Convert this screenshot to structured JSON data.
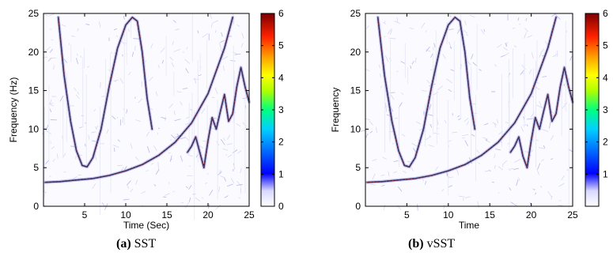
{
  "chart_data": [
    {
      "type": "heatmap",
      "panel_label": "(a)",
      "caption": "SST",
      "xlabel": "Time (Sec)",
      "ylabel": "Frequency (Hz)",
      "xlim": [
        0,
        25
      ],
      "ylim": [
        0,
        25
      ],
      "xticks": [
        5,
        10,
        15,
        20,
        25
      ],
      "yticks": [
        0,
        5,
        10,
        15,
        20,
        25
      ],
      "colorbar": {
        "ticks": [
          0,
          1,
          2,
          3,
          4,
          5,
          6
        ],
        "range": [
          0,
          6
        ],
        "colormap": "jet-to-white"
      },
      "ridges": [
        {
          "name": "chirp",
          "points": [
            [
              0.2,
              3.1
            ],
            [
              2,
              3.2
            ],
            [
              4,
              3.4
            ],
            [
              6,
              3.6
            ],
            [
              8,
              4.0
            ],
            [
              10,
              4.6
            ],
            [
              12,
              5.4
            ],
            [
              14,
              6.6
            ],
            [
              16,
              8.3
            ],
            [
              18,
              10.8
            ],
            [
              20,
              14.6
            ],
            [
              22,
              20.5
            ],
            [
              23,
              24.5
            ]
          ]
        },
        {
          "name": "arch",
          "points": [
            [
              1.8,
              24.5
            ],
            [
              2.5,
              17
            ],
            [
              3.3,
              11
            ],
            [
              4,
              7.2
            ],
            [
              4.7,
              5.3
            ],
            [
              5.3,
              5.1
            ],
            [
              6,
              6.3
            ],
            [
              7,
              10
            ],
            [
              8,
              15.6
            ],
            [
              9,
              20.5
            ],
            [
              10,
              23.5
            ],
            [
              10.8,
              24.5
            ],
            [
              11.4,
              24
            ],
            [
              12,
              20
            ],
            [
              12.6,
              14
            ],
            [
              13.2,
              10
            ]
          ]
        },
        {
          "name": "wavy",
          "points": [
            [
              17.5,
              7
            ],
            [
              18,
              7.8
            ],
            [
              18.5,
              9
            ],
            [
              19,
              7
            ],
            [
              19.5,
              5
            ],
            [
              20,
              8.5
            ],
            [
              20.5,
              11.5
            ],
            [
              21,
              10
            ],
            [
              21.5,
              12.3
            ],
            [
              22,
              14.5
            ],
            [
              22.5,
              11
            ],
            [
              23,
              12
            ],
            [
              23.5,
              15.5
            ],
            [
              24,
              18
            ],
            [
              24.5,
              15.5
            ],
            [
              25,
              13.5
            ]
          ]
        }
      ]
    },
    {
      "type": "heatmap",
      "panel_label": "(b)",
      "caption": "vSST",
      "xlabel": "Time",
      "ylabel": "Frequency",
      "xlim": [
        0,
        25
      ],
      "ylim": [
        0,
        25
      ],
      "xticks": [
        5,
        10,
        15,
        20,
        25
      ],
      "yticks": [
        0,
        5,
        10,
        15,
        20,
        25
      ],
      "colorbar": {
        "ticks": [
          1,
          2,
          3,
          4,
          5,
          6
        ],
        "range": [
          0,
          6
        ],
        "colormap": "jet-to-white"
      },
      "ridges": [
        {
          "name": "chirp",
          "points": [
            [
              0.2,
              3.1
            ],
            [
              2,
              3.2
            ],
            [
              4,
              3.4
            ],
            [
              6,
              3.6
            ],
            [
              8,
              4.0
            ],
            [
              10,
              4.6
            ],
            [
              12,
              5.4
            ],
            [
              14,
              6.6
            ],
            [
              16,
              8.3
            ],
            [
              18,
              10.8
            ],
            [
              20,
              14.6
            ],
            [
              22,
              20.5
            ],
            [
              23,
              24.5
            ]
          ]
        },
        {
          "name": "arch",
          "points": [
            [
              1.5,
              24.5
            ],
            [
              2.3,
              17
            ],
            [
              3.2,
              11
            ],
            [
              4,
              7.2
            ],
            [
              4.7,
              5.3
            ],
            [
              5.3,
              5.1
            ],
            [
              6,
              6.3
            ],
            [
              7,
              10
            ],
            [
              8,
              15.6
            ],
            [
              9,
              20.5
            ],
            [
              10,
              23.5
            ],
            [
              10.8,
              24.5
            ],
            [
              11.4,
              24
            ],
            [
              12,
              20
            ],
            [
              12.6,
              14
            ],
            [
              13.2,
              10
            ]
          ]
        },
        {
          "name": "wavy",
          "points": [
            [
              17.5,
              7
            ],
            [
              18,
              7.8
            ],
            [
              18.5,
              9
            ],
            [
              19,
              6.5
            ],
            [
              19.5,
              5
            ],
            [
              20,
              8.5
            ],
            [
              20.5,
              11.5
            ],
            [
              21,
              10
            ],
            [
              21.5,
              12.3
            ],
            [
              22,
              14.5
            ],
            [
              22.5,
              11
            ],
            [
              23,
              12
            ],
            [
              23.5,
              15.5
            ],
            [
              24,
              18
            ],
            [
              24.5,
              15.5
            ],
            [
              25,
              13.5
            ]
          ]
        }
      ]
    }
  ]
}
